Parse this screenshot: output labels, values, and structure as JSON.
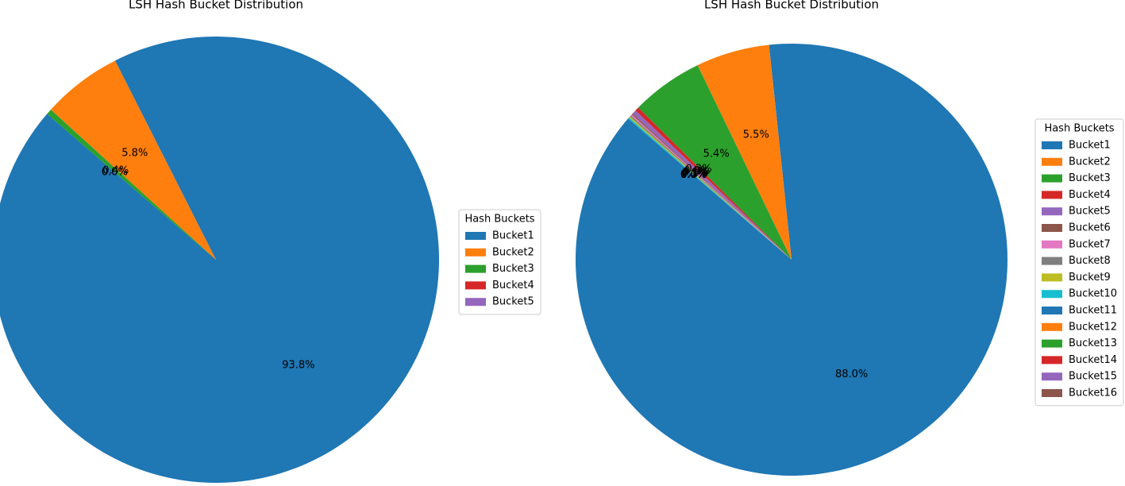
{
  "chart_data": [
    {
      "type": "pie",
      "title": "LSH Hash Bucket Distribution",
      "legend_title": "Hash Buckets",
      "legend": "right",
      "categories": [
        "Bucket1",
        "Bucket2",
        "Bucket3",
        "Bucket4",
        "Bucket5"
      ],
      "values": [
        93.8,
        5.8,
        0.4,
        0.0,
        0.0
      ],
      "value_labels": [
        "93.8%",
        "5.8%",
        "0.4%",
        "0.0%",
        "0.0%"
      ],
      "colors": [
        "#1f77b4",
        "#ff7f0e",
        "#2ca02c",
        "#d62728",
        "#9467bd"
      ]
    },
    {
      "type": "pie",
      "title": "LSH Hash Bucket Distribution",
      "legend_title": "Hash Buckets",
      "legend": "right",
      "categories": [
        "Bucket1",
        "Bucket2",
        "Bucket3",
        "Bucket4",
        "Bucket5",
        "Bucket6",
        "Bucket7",
        "Bucket8",
        "Bucket9",
        "Bucket10",
        "Bucket11",
        "Bucket12",
        "Bucket13",
        "Bucket14",
        "Bucket15",
        "Bucket16"
      ],
      "values": [
        88.0,
        5.5,
        5.4,
        0.3,
        0.3,
        0.1,
        0.1,
        0.1,
        0.1,
        0.1,
        0.0,
        0.0,
        0.0,
        0.0,
        0.0,
        0.0
      ],
      "value_labels": [
        "88.0%",
        "5.5%",
        "5.4%",
        "0.3%",
        "0.3%",
        "0.1%",
        "0.1%",
        "0.1%",
        "0.1%",
        "0.1%",
        "0.0%",
        "0.0%",
        "0.0%",
        "0.0%",
        "0.0%",
        "0.0%"
      ],
      "colors": [
        "#1f77b4",
        "#ff7f0e",
        "#2ca02c",
        "#d62728",
        "#9467bd",
        "#8c564b",
        "#e377c2",
        "#7f7f7f",
        "#bcbd22",
        "#17becf",
        "#1f77b4",
        "#ff7f0e",
        "#2ca02c",
        "#d62728",
        "#9467bd",
        "#8c564b"
      ]
    }
  ]
}
